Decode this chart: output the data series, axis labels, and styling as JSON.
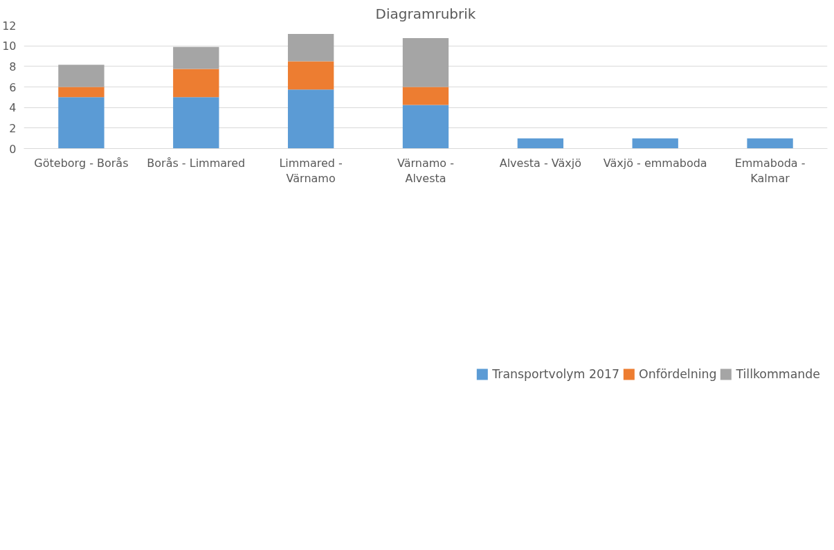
{
  "chart_data": {
    "type": "bar",
    "title": "Diagramrubrik",
    "stacked": true,
    "categories": [
      "Göteborg - Borås",
      "Borås - Limmared",
      "Limmared - Värnamo",
      "Värnamo - Alvesta",
      "Alvesta - Växjö",
      "Växjö - emmaboda",
      "Emmaboda - Kalmar"
    ],
    "series": [
      {
        "name": "Transportvolym 2017",
        "color": "#5b9bd5",
        "values": [
          5,
          5,
          5.75,
          4.25,
          1,
          1,
          1
        ]
      },
      {
        "name": "Onfördelning",
        "color": "#ed7d31",
        "values": [
          1,
          2.75,
          2.75,
          1.75,
          0,
          0,
          0
        ]
      },
      {
        "name": "Tillkommande",
        "color": "#a5a5a5",
        "values": [
          2.15,
          2.15,
          2.65,
          4.75,
          0,
          0,
          0
        ]
      }
    ],
    "ylim": [
      0,
      12
    ],
    "yticks": [
      0,
      2,
      4,
      6,
      8,
      10,
      12
    ],
    "grid": "y",
    "legend": "bottom"
  }
}
